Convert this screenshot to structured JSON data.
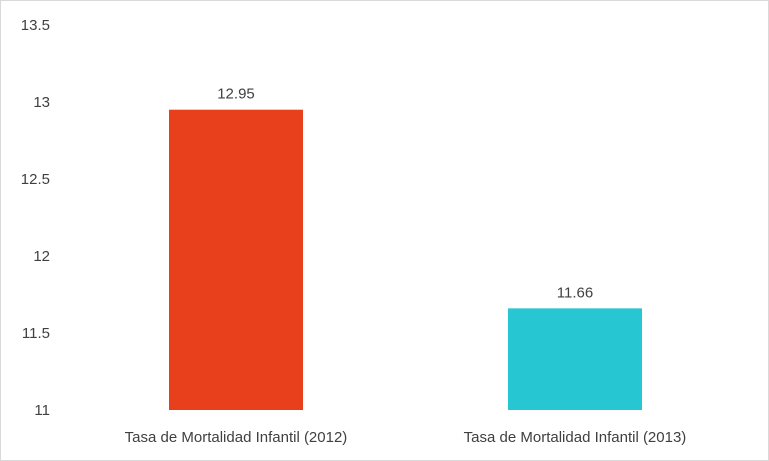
{
  "chart_data": {
    "type": "bar",
    "title": "",
    "xlabel": "",
    "ylabel": "",
    "categories": [
      "Tasa de Mortalidad Infantil (2012)",
      "Tasa de Mortalidad Infantil (2013)"
    ],
    "values": [
      12.95,
      11.66
    ],
    "value_labels": [
      "12.95",
      "11.66"
    ],
    "bar_colors": [
      "#e8401c",
      "#26c7d3"
    ],
    "ylim": [
      11,
      13.5
    ],
    "yticks": [
      "11",
      "11.5",
      "12",
      "12.5",
      "13",
      "13.5"
    ],
    "ytick_values": [
      11,
      11.5,
      12,
      12.5,
      13,
      13.5
    ],
    "grid": false,
    "legend": "none"
  }
}
